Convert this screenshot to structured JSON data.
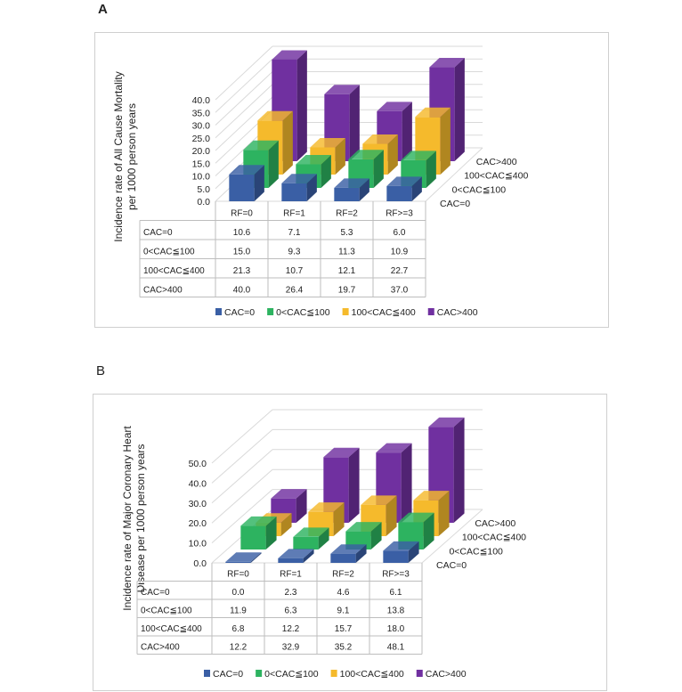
{
  "colors": {
    "cac0": "#3A5FA5",
    "cac100": "#2DB360",
    "cac400": "#F5BA2C",
    "cacOver": "#7030A0"
  },
  "chart_data": [
    {
      "panel_label": "A",
      "type": "bar",
      "title": "",
      "ylabel": "Incidence rate of All Cause Mortality per 1000 person years",
      "ylabel_lines": [
        "Incidence rate of All Cause Mortality",
        "per 1000 person years"
      ],
      "ylim": [
        0,
        40
      ],
      "y_ticks": [
        "0.0",
        "5.0",
        "10.0",
        "15.0",
        "20.0",
        "25.0",
        "30.0",
        "35.0",
        "40.0"
      ],
      "categories": [
        "RF=0",
        "RF=1",
        "RF=2",
        "RF>=3"
      ],
      "series": [
        {
          "name": "CAC=0",
          "values": [
            10.6,
            7.1,
            5.3,
            6.0
          ],
          "labels": [
            "10.6",
            "7.1",
            "5.3",
            "6.0"
          ]
        },
        {
          "name": "0<CAC≦100",
          "values": [
            15.0,
            9.3,
            11.3,
            10.9
          ],
          "labels": [
            "15.0",
            "9.3",
            "11.3",
            "10.9"
          ]
        },
        {
          "name": "100<CAC≦400",
          "values": [
            21.3,
            10.7,
            12.1,
            22.7
          ],
          "labels": [
            "21.3",
            "10.7",
            "12.1",
            "22.7"
          ]
        },
        {
          "name": "CAC>400",
          "values": [
            40.0,
            26.4,
            19.7,
            37.0
          ],
          "labels": [
            "40.0",
            "26.4",
            "19.7",
            "37.0"
          ]
        }
      ],
      "legend": [
        "CAC=0",
        "0<CAC≦100",
        "100<CAC≦400",
        "CAC>400"
      ]
    },
    {
      "panel_label": "B",
      "type": "bar",
      "title": "",
      "ylabel": "Incidence rate of Major Coronary Heart Disease per 1000 person years",
      "ylabel_lines": [
        "Incidence rate of Major Coronary Heart",
        "Disease  per 1000 person years"
      ],
      "ylim": [
        0,
        50
      ],
      "y_ticks": [
        "0.0",
        "10.0",
        "20.0",
        "30.0",
        "40.0",
        "50.0"
      ],
      "categories": [
        "RF=0",
        "RF=1",
        "RF=2",
        "RF>=3"
      ],
      "series": [
        {
          "name": "CAC=0",
          "values": [
            0.0,
            2.3,
            4.6,
            6.1
          ],
          "labels": [
            "0.0",
            "2.3",
            "4.6",
            "6.1"
          ]
        },
        {
          "name": "0<CAC≦100",
          "values": [
            11.9,
            6.3,
            9.1,
            13.8
          ],
          "labels": [
            "11.9",
            "6.3",
            "9.1",
            "13.8"
          ]
        },
        {
          "name": "100<CAC≦400",
          "values": [
            6.8,
            12.2,
            15.7,
            18.0
          ],
          "labels": [
            "6.8",
            "12.2",
            "15.7",
            "18.0"
          ]
        },
        {
          "name": "CAC>400",
          "values": [
            12.2,
            32.9,
            35.2,
            48.1
          ],
          "labels": [
            "12.2",
            "32.9",
            "35.2",
            "48.1"
          ]
        }
      ],
      "legend": [
        "CAC=0",
        "0<CAC≦100",
        "100<CAC≦400",
        "CAC>400"
      ]
    }
  ]
}
